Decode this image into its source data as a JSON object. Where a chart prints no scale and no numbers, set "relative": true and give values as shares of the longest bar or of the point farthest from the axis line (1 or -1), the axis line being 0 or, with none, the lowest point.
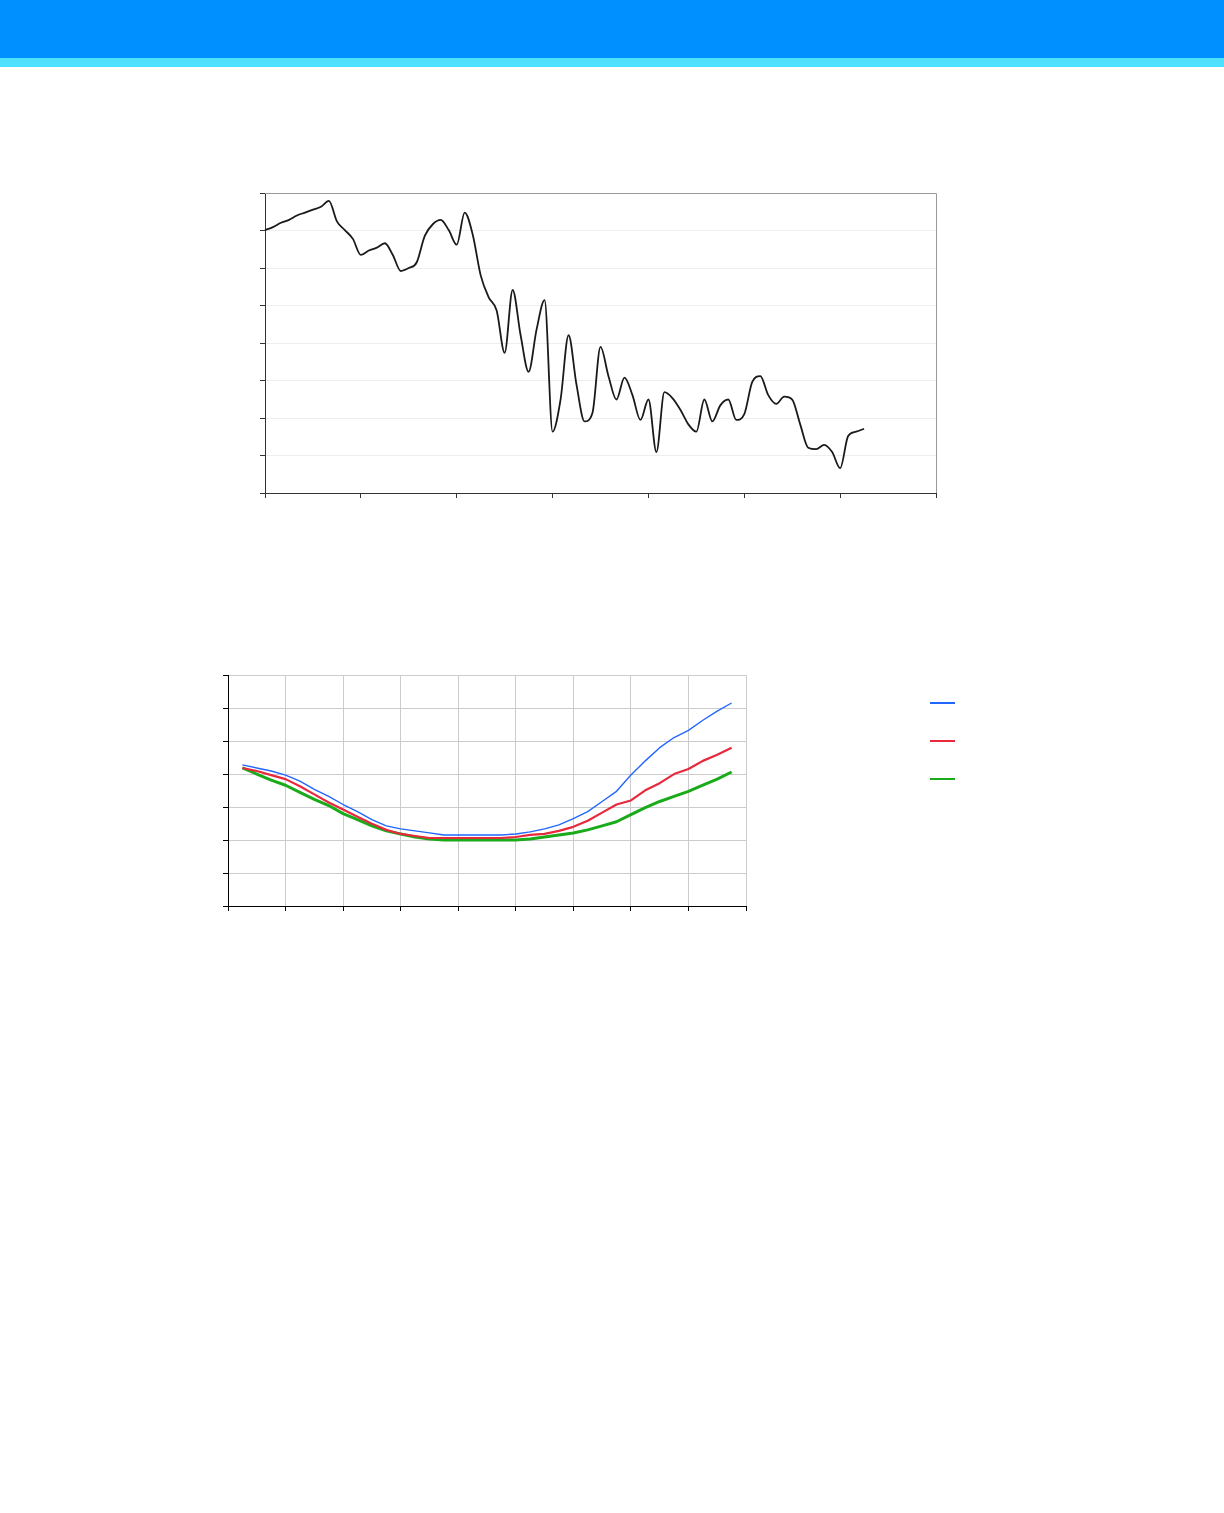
{
  "chart_data": [
    {
      "type": "line",
      "relative": true,
      "tick_labels": false,
      "grid": "y",
      "line_style": "solid",
      "categories": [
        null,
        null,
        null,
        null,
        null,
        null,
        null,
        null,
        null,
        null,
        null,
        null,
        null,
        null,
        null,
        null,
        null,
        null,
        null,
        null,
        null,
        null,
        null,
        null,
        null,
        null,
        null,
        null,
        null,
        null,
        null,
        null,
        null,
        null,
        null,
        null,
        null,
        null,
        null,
        null,
        null,
        null,
        null,
        null,
        null,
        null,
        null,
        null,
        null,
        null,
        null,
        null,
        null,
        null,
        null,
        null,
        null,
        null,
        null,
        null,
        null,
        null,
        null,
        null,
        null,
        null,
        null,
        null,
        null,
        null,
        null,
        null,
        null,
        null,
        null,
        null,
        null,
        null,
        null,
        null,
        null,
        null,
        null,
        null,
        null
      ],
      "series": [
        {
          "color": "#1a1a1a",
          "values": [
            0.9,
            0.91,
            0.925,
            0.935,
            0.95,
            0.96,
            0.97,
            0.98,
            1,
            0.93,
            0.9,
            0.87,
            0.815,
            0.83,
            0.84,
            0.855,
            0.815,
            0.76,
            0.77,
            0.79,
            0.88,
            0.92,
            0.935,
            0.9,
            0.85,
            0.96,
            0.885,
            0.745,
            0.67,
            0.625,
            0.48,
            0.695,
            0.54,
            0.415,
            0.56,
            0.66,
            0.21,
            0.32,
            0.54,
            0.37,
            0.245,
            0.275,
            0.5,
            0.4,
            0.32,
            0.395,
            0.335,
            0.25,
            0.32,
            0.14,
            0.345,
            0.325,
            0.285,
            0.235,
            0.21,
            0.32,
            0.245,
            0.3,
            0.32,
            0.25,
            0.27,
            0.38,
            0.4,
            0.335,
            0.305,
            0.33,
            0.32,
            0.235,
            0.155,
            0.15,
            0.165,
            0.14,
            0.085,
            0.195,
            0.21,
            0.22,
            null,
            null,
            null,
            null,
            null,
            null,
            null,
            null,
            null
          ]
        }
      ]
    },
    {
      "type": "line",
      "relative": true,
      "tick_labels": false,
      "grid": true,
      "line_style": "solid",
      "categories": [
        null,
        null,
        null,
        null,
        null,
        null,
        null,
        null,
        null,
        null,
        null,
        null,
        null,
        null,
        null,
        null,
        null,
        null,
        null,
        null,
        null,
        null,
        null,
        null,
        null,
        null,
        null,
        null,
        null,
        null,
        null,
        null,
        null,
        null,
        null,
        null,
        null
      ],
      "series": [
        {
          "color": "#2266ff",
          "values": [
            null,
            0.695,
            0.68,
            0.665,
            0.645,
            0.615,
            0.575,
            0.54,
            0.5,
            0.465,
            0.425,
            0.395,
            0.38,
            0.37,
            0.36,
            0.35,
            0.35,
            0.35,
            0.35,
            0.35,
            0.355,
            0.365,
            0.38,
            0.4,
            0.43,
            0.465,
            0.515,
            0.565,
            0.645,
            0.715,
            0.78,
            0.83,
            0.865,
            0.915,
            0.96,
            1,
            null
          ]
        },
        {
          "color": "#e8283c",
          "values": [
            null,
            0.68,
            0.665,
            0.645,
            0.625,
            0.59,
            0.55,
            0.51,
            0.475,
            0.44,
            0.405,
            0.375,
            0.355,
            0.345,
            0.335,
            0.335,
            0.335,
            0.335,
            0.335,
            0.335,
            0.34,
            0.35,
            0.355,
            0.37,
            0.39,
            0.42,
            0.46,
            0.5,
            0.52,
            0.57,
            0.605,
            0.65,
            0.675,
            0.715,
            0.745,
            0.78,
            null
          ]
        },
        {
          "color": "#1aab1a",
          "values": [
            null,
            0.68,
            0.65,
            0.62,
            0.595,
            0.56,
            0.525,
            0.495,
            0.455,
            0.425,
            0.395,
            0.37,
            0.355,
            0.34,
            0.33,
            0.325,
            0.325,
            0.325,
            0.325,
            0.325,
            0.325,
            0.33,
            0.34,
            0.35,
            0.36,
            0.375,
            0.395,
            0.415,
            0.45,
            0.485,
            0.515,
            0.54,
            0.565,
            0.595,
            0.625,
            0.66,
            null
          ]
        }
      ]
    }
  ]
}
